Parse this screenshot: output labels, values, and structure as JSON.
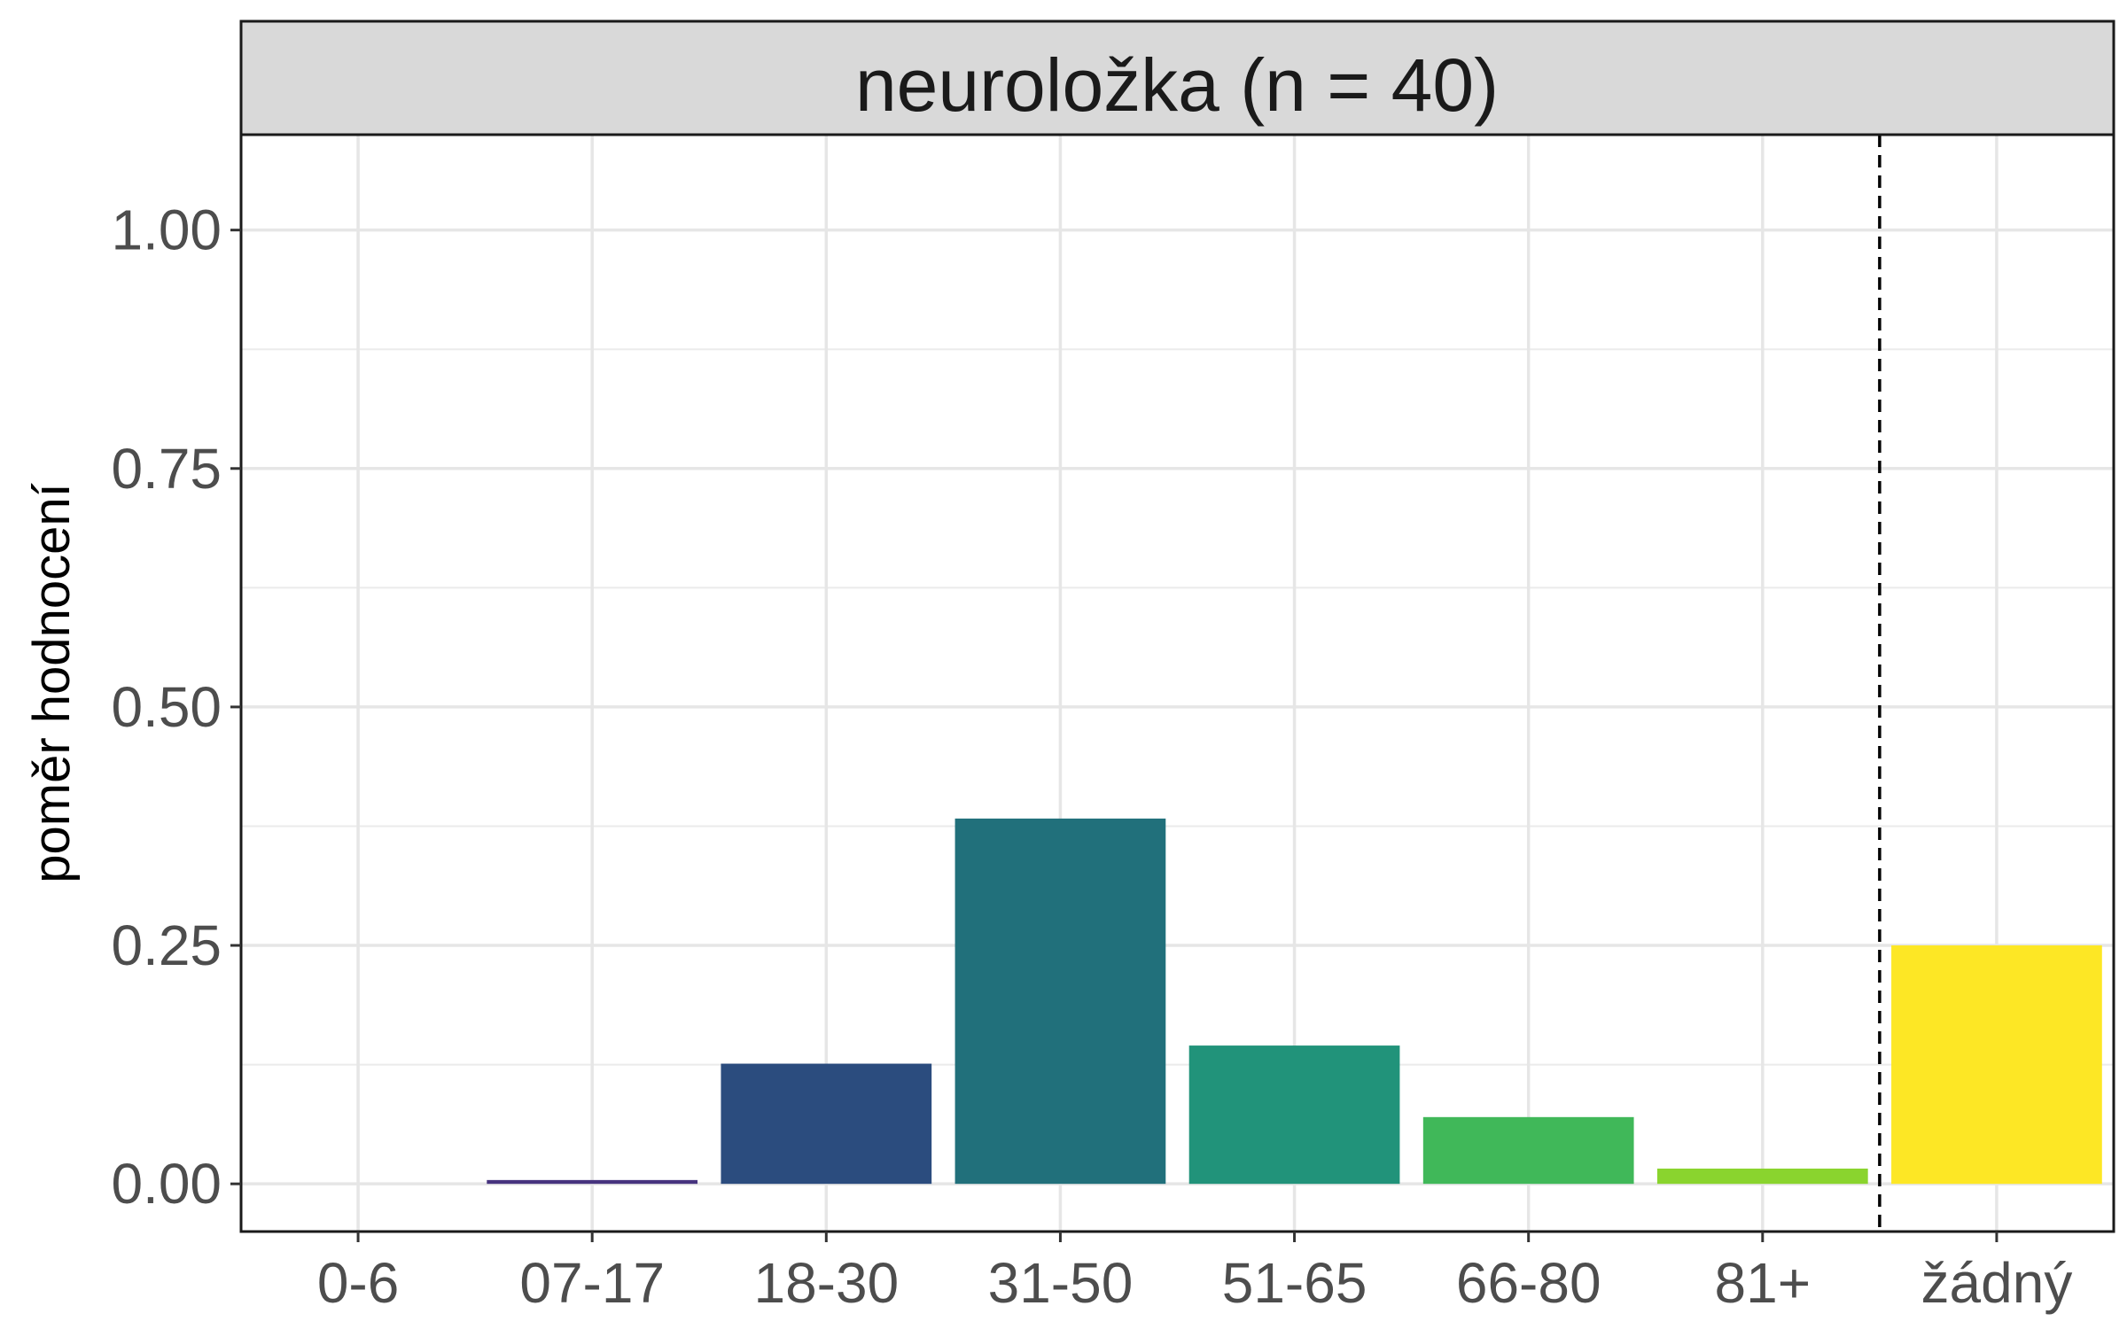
{
  "chart_data": {
    "type": "bar",
    "title": "neuroložka (n = 40)",
    "xlabel": "",
    "ylabel": "poměr hodnocení",
    "categories": [
      "0-6",
      "07-17",
      "18-30",
      "31-50",
      "51-65",
      "66-80",
      "81+",
      "žádný"
    ],
    "values": [
      0.0,
      0.004,
      0.126,
      0.383,
      0.145,
      0.07,
      0.016,
      0.25
    ],
    "colors": [
      "#440154",
      "#46337E",
      "#2B4C7E",
      "#21707B",
      "#21937A",
      "#40B859",
      "#8AD42E",
      "#FDE725"
    ],
    "ylim": [
      -0.05,
      1.1
    ],
    "yticks": [
      0.0,
      0.25,
      0.5,
      0.75,
      1.0
    ],
    "ytick_labels": [
      "0.00",
      "0.25",
      "0.50",
      "0.75",
      "1.00"
    ],
    "separator_after_category": "81+",
    "grid": true
  }
}
